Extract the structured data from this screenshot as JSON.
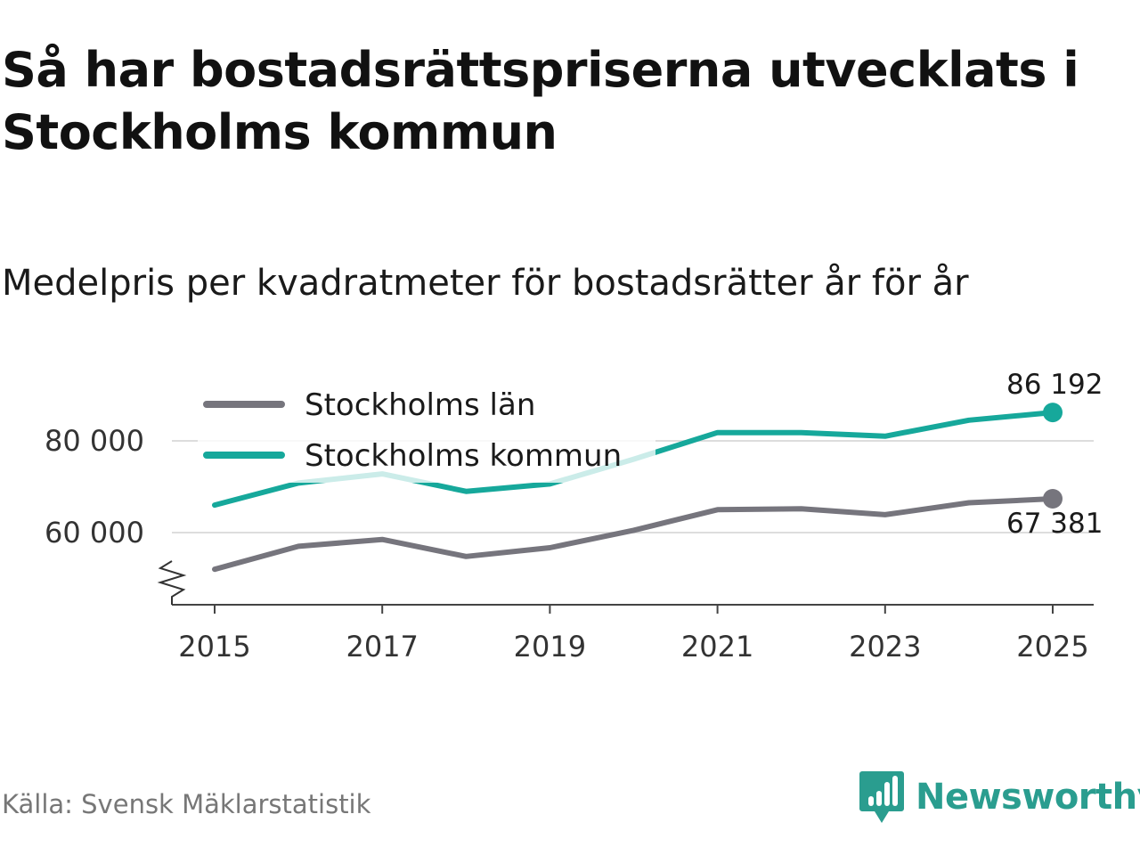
{
  "title": "Så har bostadsrättspriserna utvecklats i Stockholms kommun",
  "subtitle": "Medelpris per kvadratmeter för bostadsrätter år för år",
  "source": "Källa: Svensk Mäklarstatistik",
  "brand": {
    "name": "Newsworthy",
    "color": "#2a9d8f",
    "icon": "newsworthy-logo-icon"
  },
  "colors": {
    "grid": "#dddddd",
    "axis": "#444444",
    "text": "#1a1a1a",
    "source": "#777777"
  },
  "chart_data": {
    "type": "line",
    "title": "Medelpris per kvadratmeter för bostadsrätter år för år",
    "xlabel": "",
    "ylabel": "",
    "x": [
      2015,
      2016,
      2017,
      2018,
      2019,
      2020,
      2021,
      2022,
      2023,
      2024,
      2025
    ],
    "xticks": [
      2015,
      2017,
      2019,
      2021,
      2023,
      2025
    ],
    "xtick_labels": [
      "2015",
      "2017",
      "2019",
      "2021",
      "2023",
      "2025"
    ],
    "xlim": [
      2015,
      2025
    ],
    "ylim": [
      45000,
      92000
    ],
    "yticks": [
      60000,
      80000
    ],
    "ytick_labels": [
      "60 000",
      "80 000"
    ],
    "axis_break": true,
    "grid": true,
    "legend_position": "top-left",
    "series": [
      {
        "name": "Stockholms län",
        "color": "#76757d",
        "values": [
          52000,
          57000,
          58500,
          54800,
          56700,
          60500,
          65000,
          65200,
          63900,
          66500,
          67381
        ],
        "end_label": "67 381",
        "end_label_position": "below"
      },
      {
        "name": "Stockholms kommun",
        "color": "#16a89b",
        "values": [
          66000,
          70800,
          72800,
          69000,
          70600,
          76000,
          81800,
          81800,
          81000,
          84500,
          86192
        ],
        "end_label": "86 192",
        "end_label_position": "above"
      }
    ]
  }
}
